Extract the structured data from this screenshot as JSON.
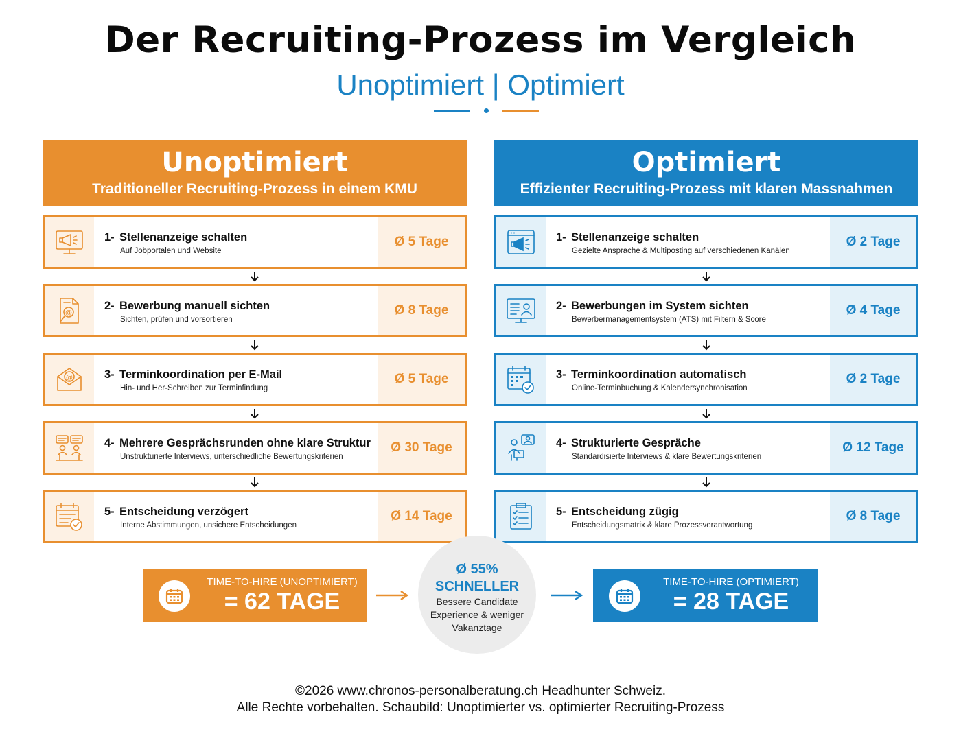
{
  "header": {
    "title": "Der Recruiting-Prozess im Vergleich",
    "subtitle": "Unoptimiert | Optimiert"
  },
  "colors": {
    "orange": "#e88f2f",
    "orange_light": "#fdf1e4",
    "blue": "#1a82c4",
    "blue_light": "#e3f1f9"
  },
  "left": {
    "title": "Unoptimiert",
    "subtitle": "Traditioneller Recruiting-Prozess in einem KMU",
    "steps": [
      {
        "num": "1-",
        "title": "Stellenanzeige schalten",
        "sub": "Auf Jobportalen und Website",
        "days": "Ø 5 Tage",
        "icon": "megaphone-monitor-icon"
      },
      {
        "num": "2-",
        "title": "Bewerbung manuell sichten",
        "sub": "Sichten, prüfen und vorsortieren",
        "days": "Ø 8 Tage",
        "icon": "document-search-icon"
      },
      {
        "num": "3-",
        "title": "Terminkoordination per E-Mail",
        "sub": "Hin- und Her-Schreiben zur Terminfindung",
        "days": "Ø 5 Tage",
        "icon": "email-icon"
      },
      {
        "num": "4-",
        "title": "Mehrere Gesprächsrunden ohne klare Struktur",
        "sub": "Unstrukturierte Interviews, unterschiedliche Bewertungskriterien",
        "days": "Ø 30 Tage",
        "icon": "conversation-icon"
      },
      {
        "num": "5-",
        "title": "Entscheidung verzögert",
        "sub": "Interne Abstimmungen, unsichere Entscheidungen",
        "days": "Ø 14 Tage",
        "icon": "calendar-clock-icon"
      }
    ],
    "total_label": "TIME-TO-HIRE (UNOPTIMIERT)",
    "total_value": "= 62 TAGE"
  },
  "right": {
    "title": "Optimiert",
    "subtitle": "Effizienter Recruiting-Prozess mit klaren Massnahmen",
    "steps": [
      {
        "num": "1-",
        "title": "Stellenanzeige schalten",
        "sub": "Gezielte Ansprache & Multiposting auf verschiedenen Kanälen",
        "days": "Ø 2 Tage",
        "icon": "megaphone-browser-icon"
      },
      {
        "num": "2-",
        "title": "Bewerbungen im System sichten",
        "sub": "Bewerbermanagementsystem (ATS) mit Filtern & Score",
        "days": "Ø 4 Tage",
        "icon": "ats-monitor-icon"
      },
      {
        "num": "3-",
        "title": "Terminkoordination automatisch",
        "sub": "Online-Terminbuchung & Kalendersynchronisation",
        "days": "Ø 2 Tage",
        "icon": "calendar-check-icon"
      },
      {
        "num": "4-",
        "title": "Strukturierte Gespräche",
        "sub": "Standardisierte Interviews & klare Bewertungskriterien",
        "days": "Ø 12 Tage",
        "icon": "interview-icon"
      },
      {
        "num": "5-",
        "title": "Entscheidung zügig",
        "sub": "Entscheidungsmatrix & klare Prozessverantwortung",
        "days": "Ø 8 Tage",
        "icon": "clipboard-checklist-icon"
      }
    ],
    "total_label": "TIME-TO-HIRE (OPTIMIERT)",
    "total_value": "= 28 TAGE"
  },
  "center": {
    "percent": "Ø 55%",
    "faster": "SCHNELLER",
    "desc_line1": "Bessere Candidate",
    "desc_line2": "Experience & weniger",
    "desc_line3": "Vakanztage"
  },
  "footer": {
    "line1": "©2026 www.chronos-personalberatung.ch Headhunter Schweiz.",
    "line2": "Alle Rechte vorbehalten. Schaubild: Unoptimierter vs. optimierter Recruiting-Prozess"
  }
}
